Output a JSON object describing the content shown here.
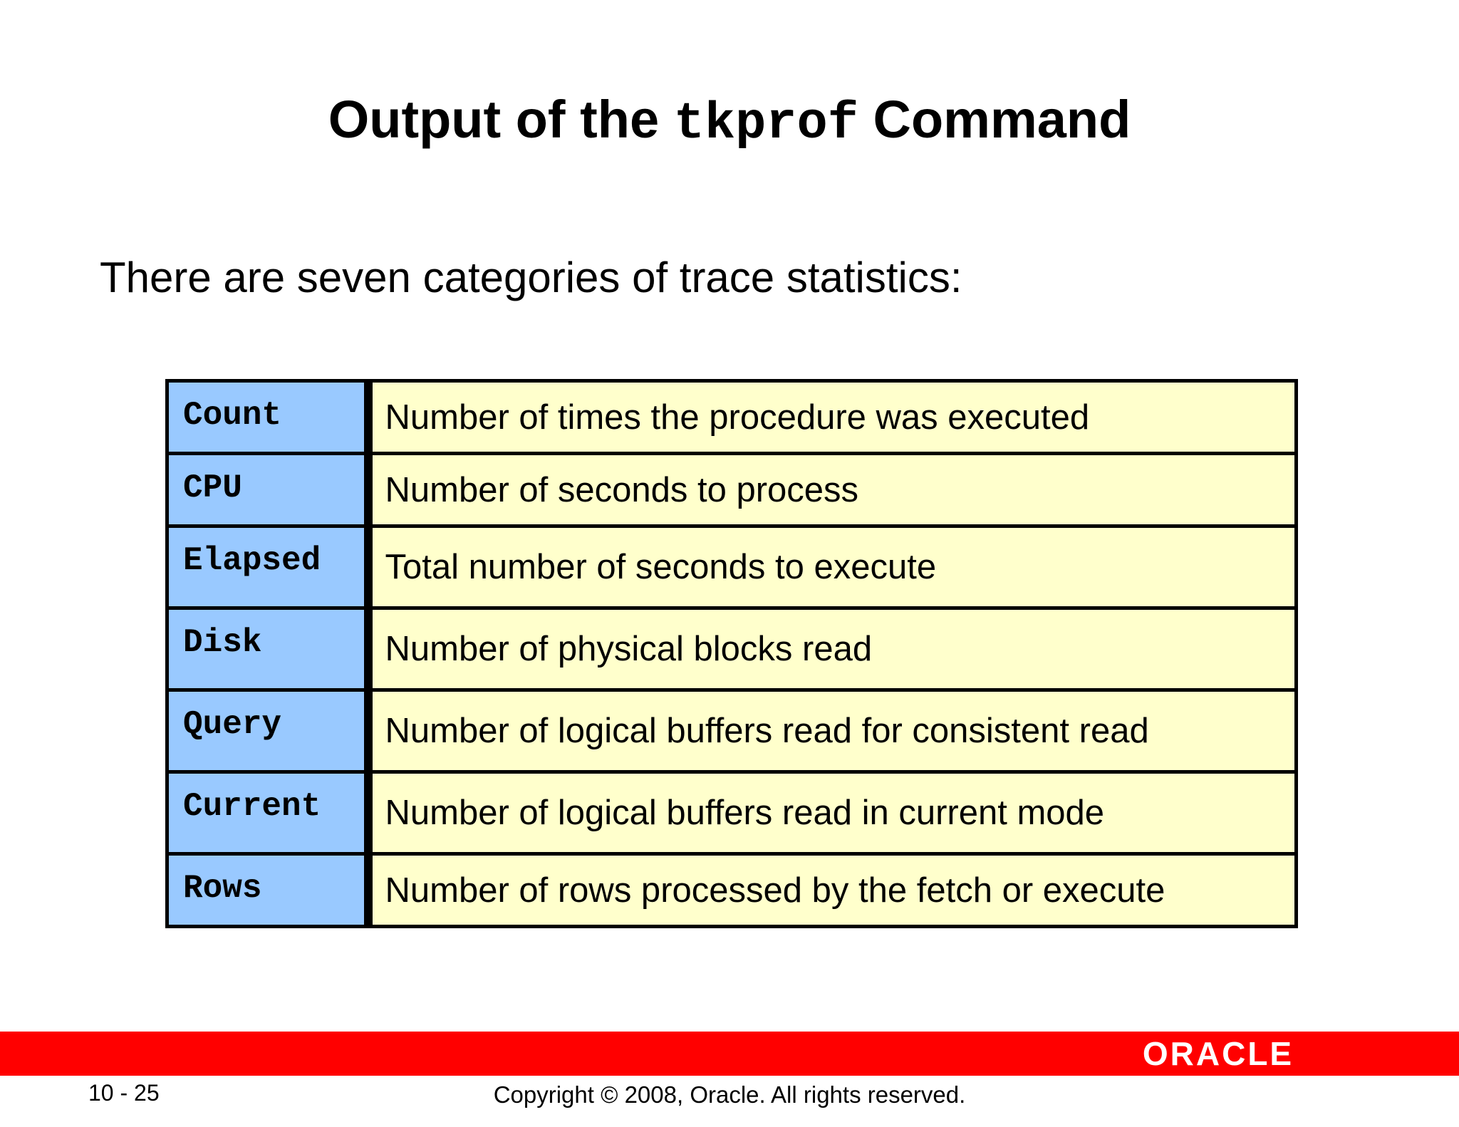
{
  "slide": {
    "title_before": "Output of the ",
    "title_code": "tkprof",
    "title_after": " Command",
    "intro": "There are seven categories of trace statistics:"
  },
  "statistics": [
    {
      "name": "Count",
      "description": "Number of times the procedure was executed"
    },
    {
      "name": "CPU",
      "description": "Number of seconds to process"
    },
    {
      "name": "Elapsed",
      "description": "Total number of seconds to execute"
    },
    {
      "name": "Disk",
      "description": "Number of physical blocks read"
    },
    {
      "name": "Query",
      "description": "Number of logical buffers read for consistent read"
    },
    {
      "name": "Current",
      "description": "Number of logical buffers read in current mode"
    },
    {
      "name": "Rows",
      "description": "Number of rows processed by the fetch or execute"
    }
  ],
  "footer": {
    "page_number": "10 - 25",
    "copyright": "Copyright © 2008, Oracle. All rights reserved.",
    "logo_text": "ORACLE"
  },
  "colors": {
    "name_cell": "#99c9ff",
    "description_cell": "#ffffcc",
    "footer_bar": "#ff0000"
  }
}
